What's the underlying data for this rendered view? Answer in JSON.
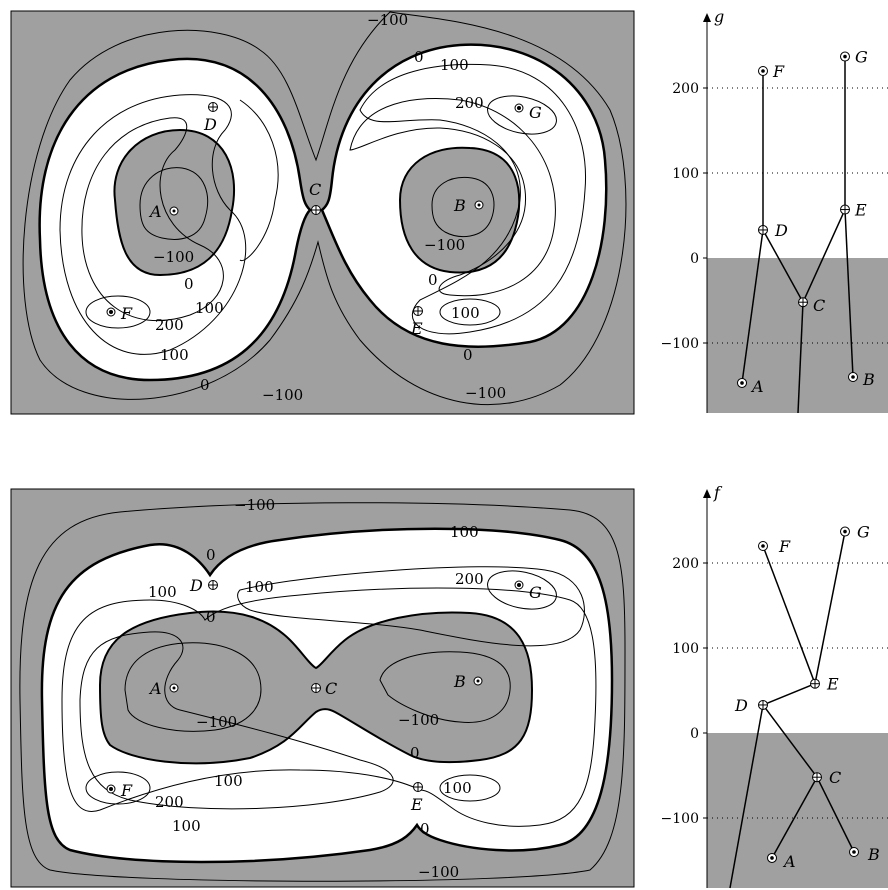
{
  "panels": [
    {
      "id": "top-contour",
      "labels": [
        "−100",
        "0",
        "100",
        "200",
        "−100",
        "0",
        "100",
        "0",
        "−100",
        "200",
        "−100",
        "0",
        "100",
        "100",
        "100",
        "200",
        "0",
        "−100"
      ],
      "points": {
        "A": "A",
        "B": "B",
        "C": "C",
        "D": "D",
        "E": "E",
        "F": "F",
        "G": "G"
      }
    },
    {
      "id": "bottom-contour",
      "labels": [
        "−100",
        "0",
        "100",
        "0",
        "100",
        "100",
        "200",
        "−100",
        "0",
        "100",
        "200",
        "100",
        "100",
        "0",
        "−100"
      ],
      "points": {
        "A": "A",
        "B": "B",
        "C": "C",
        "D": "D",
        "E": "E",
        "F": "F",
        "G": "G"
      }
    }
  ],
  "graphs": [
    {
      "id": "top-graph",
      "axis_label": "g",
      "ticks": [
        "200",
        "100",
        "0",
        "−100"
      ],
      "nodes": [
        {
          "name": "F",
          "value": 220
        },
        {
          "name": "G",
          "value": 237
        },
        {
          "name": "D",
          "value": 33
        },
        {
          "name": "E",
          "value": 57
        },
        {
          "name": "C",
          "value": -52
        },
        {
          "name": "A",
          "value": -147
        },
        {
          "name": "B",
          "value": -140
        }
      ]
    },
    {
      "id": "bottom-graph",
      "axis_label": "f",
      "ticks": [
        "200",
        "100",
        "0",
        "−100"
      ],
      "nodes": [
        {
          "name": "F",
          "value": 220
        },
        {
          "name": "G",
          "value": 237
        },
        {
          "name": "E",
          "value": 58
        },
        {
          "name": "D",
          "value": 33
        },
        {
          "name": "C",
          "value": -52
        },
        {
          "name": "A",
          "value": -147
        },
        {
          "name": "B",
          "value": -140
        }
      ]
    }
  ]
}
